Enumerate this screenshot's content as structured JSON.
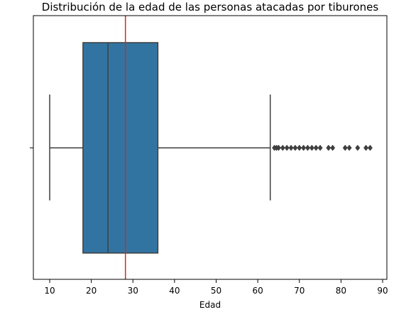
{
  "chart_data": {
    "type": "box",
    "title": "Distribución de la edad de las personas atacadas por tiburones",
    "xlabel": "Edad",
    "ylabel": "",
    "xlim": [
      6,
      88
    ],
    "x_ticks": [
      10,
      20,
      30,
      40,
      50,
      60,
      70,
      80,
      90
    ],
    "orientation": "horizontal",
    "box": {
      "whisker_low": 10,
      "q1": 18,
      "median": 24,
      "q3": 36,
      "whisker_high": 63,
      "outliers": [
        64,
        64.5,
        65,
        66,
        67,
        68,
        69,
        70,
        71,
        72,
        73,
        74,
        75,
        77,
        78,
        81,
        82,
        84,
        86,
        87
      ]
    },
    "reference_line": {
      "value": 28.2,
      "color": "#d62728"
    },
    "colors": {
      "box_fill": "#3274a1",
      "line": "#3f3f3f",
      "outlier": "#3f3f3f"
    },
    "grid": false,
    "legend": "none"
  }
}
